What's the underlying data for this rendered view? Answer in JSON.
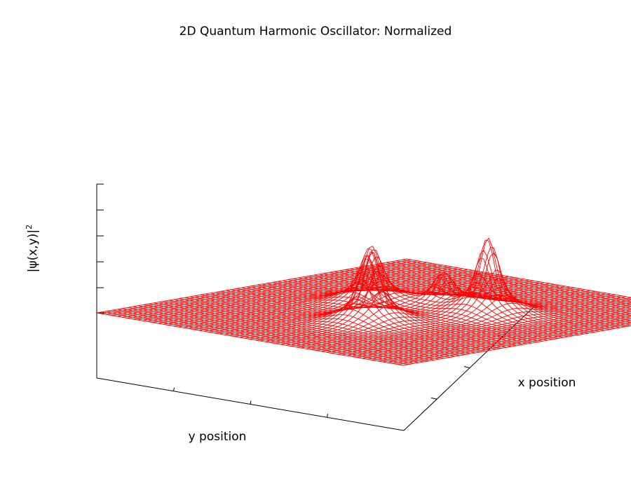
{
  "chart_data": {
    "type": "surface-wireframe",
    "title": "2D Quantum Harmonic Oscillator: Normalized",
    "xlabel": "x position",
    "ylabel": "y position",
    "zlabel": "|ψ(x,y)|",
    "zlabel_superscript": "2",
    "tick_labels_shown": false,
    "grid": false,
    "legend": "none",
    "surface_color": "#ff0000",
    "axis_color": "#000000",
    "x_range": [
      -1,
      1
    ],
    "y_range": [
      -1,
      1
    ],
    "z_range": [
      0,
      5
    ],
    "mesh": {
      "x_lines": 60,
      "y_lines": 60
    },
    "peaks": [
      {
        "x": -0.28,
        "y": 0.06,
        "z": 1.9
      },
      {
        "x": 0.08,
        "y": -0.3,
        "z": 1.5
      },
      {
        "x": 0.24,
        "y": 0.3,
        "z": 2.0
      },
      {
        "x": 0.25,
        "y": 0.0,
        "z": 0.85
      }
    ]
  }
}
